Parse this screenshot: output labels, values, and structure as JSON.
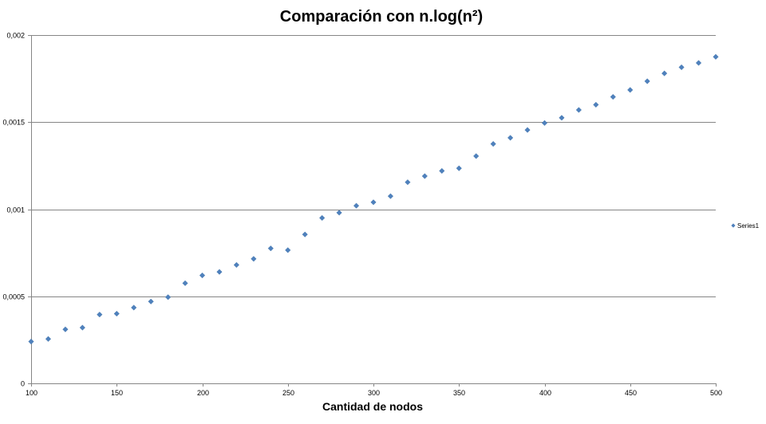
{
  "chart_data": {
    "type": "scatter",
    "title": "Comparación con n.log(n²)",
    "xlabel": "Cantidad de nodos",
    "ylabel": "",
    "xlim": [
      100,
      500
    ],
    "ylim": [
      0,
      0.002
    ],
    "x_ticks": [
      100,
      150,
      200,
      250,
      300,
      350,
      400,
      450,
      500
    ],
    "x_tick_labels": [
      "100",
      "150",
      "200",
      "250",
      "300",
      "350",
      "400",
      "450",
      "500"
    ],
    "y_ticks": [
      0,
      0.0005,
      0.001,
      0.0015,
      0.002
    ],
    "y_tick_labels": [
      "0",
      "0,0005",
      "0,001",
      "0,0015",
      "0,002"
    ],
    "grid": "horizontal",
    "legend_position": "right",
    "marker_color": "#4F81BD",
    "series": [
      {
        "name": "Series1",
        "x": [
          100,
          110,
          120,
          130,
          140,
          150,
          160,
          170,
          180,
          190,
          200,
          210,
          220,
          230,
          240,
          250,
          260,
          270,
          280,
          290,
          300,
          310,
          320,
          330,
          340,
          350,
          360,
          370,
          380,
          390,
          400,
          410,
          420,
          430,
          440,
          450,
          460,
          470,
          480,
          490,
          500
        ],
        "y": [
          0.00024,
          0.000255,
          0.00031,
          0.00032,
          0.000395,
          0.0004,
          0.000435,
          0.00047,
          0.000495,
          0.000575,
          0.00062,
          0.00064,
          0.00068,
          0.000715,
          0.000775,
          0.000765,
          0.000855,
          0.00095,
          0.00098,
          0.00102,
          0.00104,
          0.001075,
          0.001155,
          0.00119,
          0.00122,
          0.001235,
          0.001305,
          0.001375,
          0.00141,
          0.001455,
          0.001495,
          0.001525,
          0.00157,
          0.0016,
          0.001645,
          0.001685,
          0.001735,
          0.00178,
          0.001815,
          0.00184,
          0.001875
        ]
      }
    ]
  }
}
